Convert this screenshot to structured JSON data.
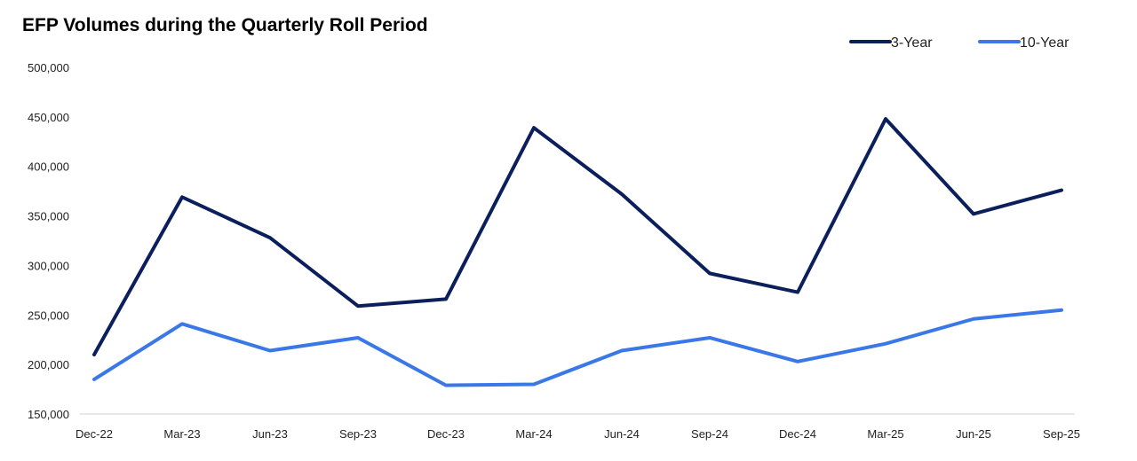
{
  "chart_data": {
    "type": "line",
    "title": "EFP Volumes during the Quarterly Roll Period",
    "xlabel": "",
    "ylabel": "",
    "categories": [
      "Dec-22",
      "Mar-23",
      "Jun-23",
      "Sep-23",
      "Dec-23",
      "Mar-24",
      "Jun-24",
      "Sep-24",
      "Dec-24",
      "Mar-25",
      "Jun-25",
      "Sep-25"
    ],
    "ylim": [
      150000,
      500000
    ],
    "yticks": [
      150000,
      200000,
      250000,
      300000,
      350000,
      400000,
      450000,
      500000
    ],
    "ytick_labels": [
      "150,000",
      "200,000",
      "250,000",
      "300,000",
      "350,000",
      "400,000",
      "450,000",
      "500,000"
    ],
    "grid": false,
    "legend_position": "top-right",
    "series": [
      {
        "name": "3-Year",
        "color": "#0b1f5c",
        "values": [
          210000,
          369000,
          328000,
          259000,
          266000,
          439000,
          372000,
          292000,
          273000,
          448000,
          352000,
          376000
        ]
      },
      {
        "name": "10-Year",
        "color": "#3a78e8",
        "values": [
          185000,
          241000,
          214000,
          227000,
          179000,
          180000,
          214000,
          227000,
          203000,
          221000,
          246000,
          255000
        ]
      }
    ]
  }
}
